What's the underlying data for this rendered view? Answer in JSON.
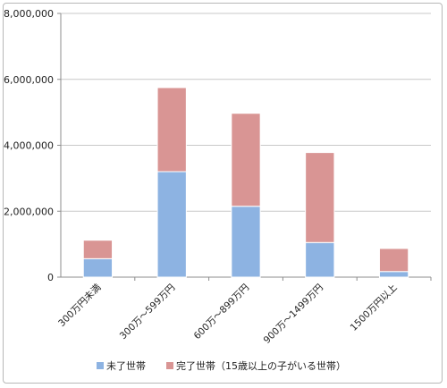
{
  "chart_data": {
    "type": "bar",
    "stacked": true,
    "categories": [
      "300万円未満",
      "300万～599万円",
      "600万～899万円",
      "900万～1499万円",
      "1500万円以上"
    ],
    "series": [
      {
        "name": "未了世帯",
        "color": "#8db3e2",
        "values": [
          560000,
          3200000,
          2150000,
          1050000,
          170000
        ]
      },
      {
        "name": "完了世帯（15歳以上の子がいる世帯）",
        "color": "#d99594",
        "values": [
          560000,
          2550000,
          2820000,
          2730000,
          700000
        ]
      }
    ],
    "ylim": [
      0,
      8000000
    ],
    "yticks": [
      "0",
      "2,000,000",
      "4,000,000",
      "6,000,000",
      "8,000,000"
    ],
    "grid": true,
    "legend": "bottom",
    "title": "",
    "xlabel": "",
    "ylabel": ""
  }
}
